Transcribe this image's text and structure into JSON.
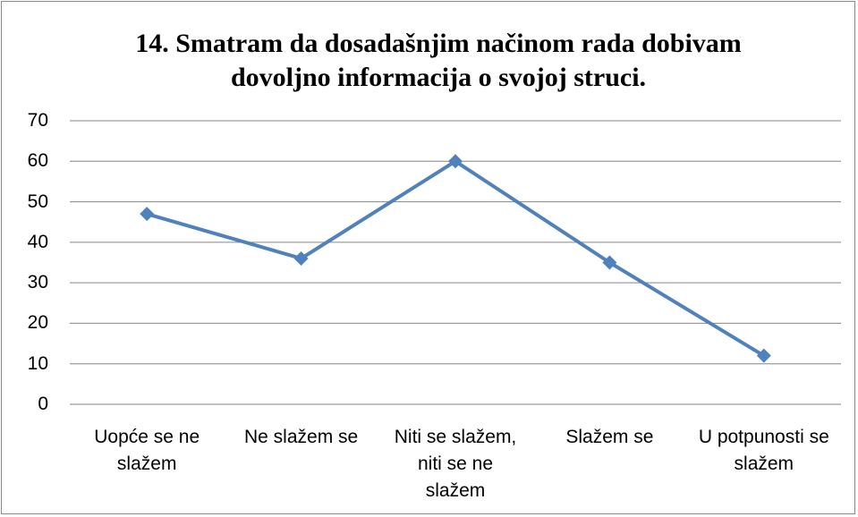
{
  "chart_data": {
    "type": "line",
    "title": "14. Smatram da dosadašnjim načinom rada dobivam dovoljno informacija o svojoj struci.",
    "categories": [
      "Uopće se ne slažem",
      "Ne slažem se",
      "Niti se slažem, niti se ne slažem",
      "Slažem se",
      "U potpunosti se slažem"
    ],
    "values": [
      47,
      36,
      60,
      35,
      12
    ],
    "color": "#4f81bd",
    "ylim": [
      0,
      70
    ],
    "yticks": [
      0,
      10,
      20,
      30,
      40,
      50,
      60,
      70
    ],
    "grid": true
  }
}
